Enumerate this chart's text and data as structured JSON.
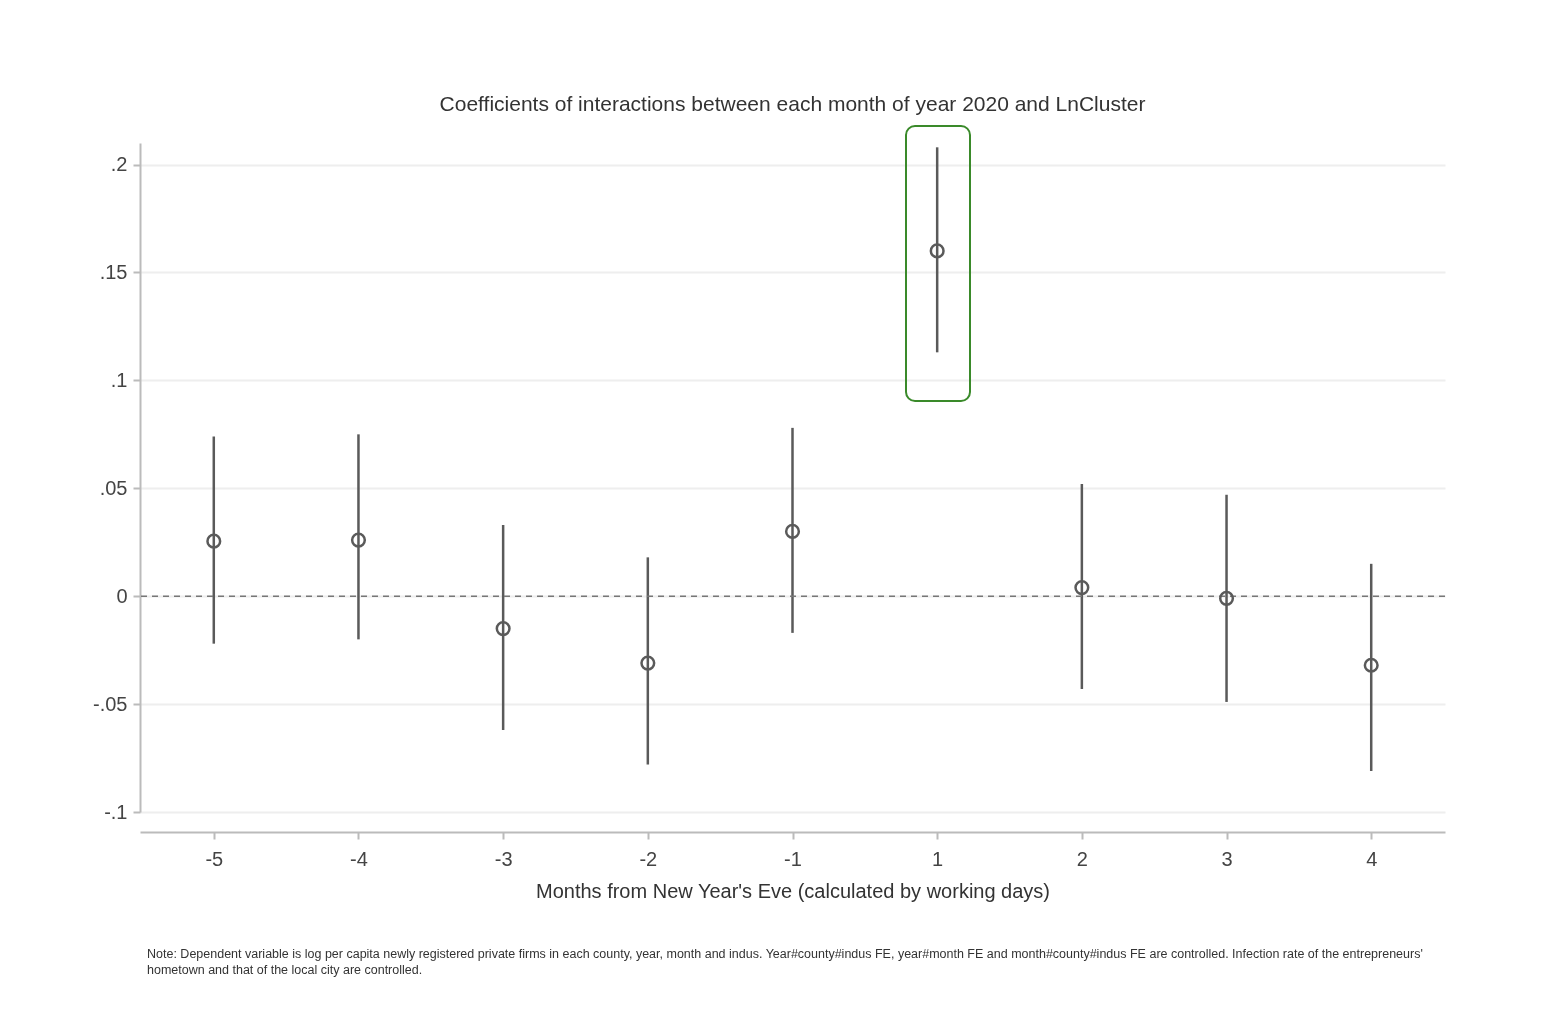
{
  "chart_data": {
    "type": "scatter",
    "title": "Coefficients of interactions between each month of year 2020 and LnCluster",
    "xlabel": "Months from New Year's Eve (calculated by working days)",
    "categories": [
      "-5",
      "-4",
      "-3",
      "-2",
      "-1",
      "1",
      "2",
      "3",
      "4"
    ],
    "series": [
      {
        "color": "#5a5a5a",
        "values": [
          0.0255,
          0.026,
          -0.015,
          -0.031,
          0.03,
          0.16,
          0.004,
          -0.001,
          -0.032
        ],
        "errors": [
          [
            -0.022,
            0.074
          ],
          [
            -0.02,
            0.075
          ],
          [
            -0.062,
            0.033
          ],
          [
            -0.078,
            0.018
          ],
          [
            -0.017,
            0.078
          ],
          [
            0.113,
            0.208
          ],
          [
            -0.043,
            0.052
          ],
          [
            -0.049,
            0.047
          ],
          [
            -0.081,
            0.015
          ]
        ]
      }
    ],
    "ylim": [
      -0.1,
      0.21
    ],
    "yticks": [
      {
        "value": -0.1,
        "label": "-.1"
      },
      {
        "value": -0.05,
        "label": "-.05"
      },
      0,
      {
        "value": 0.05,
        "label": ".05"
      },
      {
        "value": 0.1,
        "label": ".1"
      },
      {
        "value": 0.15,
        "label": ".15"
      },
      {
        "value": 0.2,
        "label": ".2"
      }
    ],
    "grid": "y",
    "marker": "circle",
    "ref_lines": [
      {
        "axis": "y",
        "value": 0,
        "color": "#777777",
        "line_style": "dashed"
      }
    ],
    "annotations": [
      "Note: Dependent variable is log per capita newly registered private firms in each county, year, month and indus. Year#county#indus FE, year#month FE and month#county#indus FE are controlled. Infection rate of the entrepreneurs' hometown and that of the local city are controlled."
    ]
  }
}
